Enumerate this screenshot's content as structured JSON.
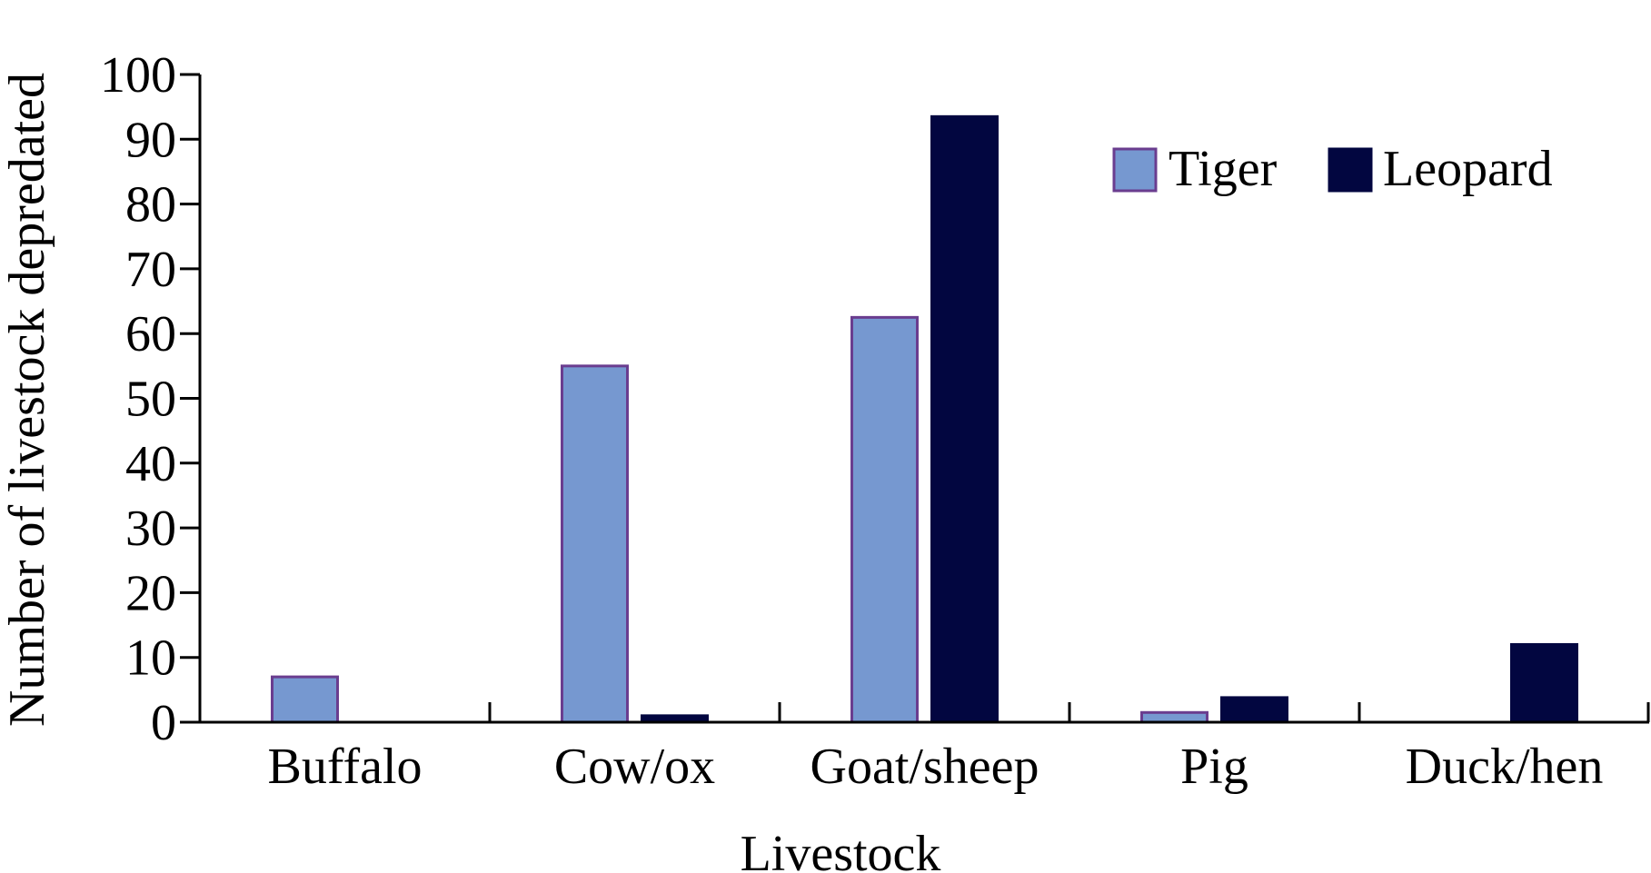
{
  "chart_data": {
    "type": "bar",
    "title": "",
    "xlabel": "Livestock",
    "ylabel": "Number of livestock depredated",
    "categories": [
      "Buffalo",
      "Cow/ox",
      "Goat/sheep",
      "Pig",
      "Duck/hen"
    ],
    "series": [
      {
        "name": "Tiger",
        "values": [
          7,
          55,
          62.5,
          1.5,
          0
        ],
        "color": "#7698D0",
        "edge_color": "#6A3D8F"
      },
      {
        "name": "Leopard",
        "values": [
          0,
          1,
          93.5,
          3.8,
          12
        ],
        "color": "#020640",
        "edge_color": "#020640"
      }
    ],
    "ylim": [
      0,
      100
    ],
    "yticks": [
      "0",
      "10",
      "20",
      "30",
      "40",
      "50",
      "60",
      "70",
      "80",
      "90",
      "100"
    ],
    "grid": false,
    "legend": {
      "position": "top-right"
    }
  }
}
